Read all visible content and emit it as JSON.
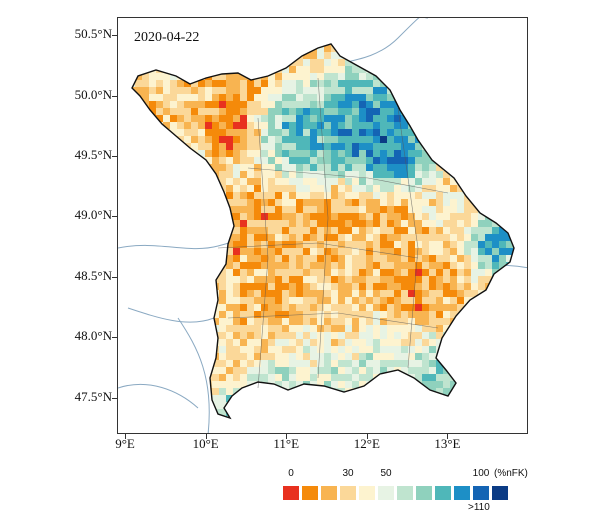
{
  "map": {
    "date": "2020-04-22",
    "lat_labels": [
      "50.5°N",
      "50.0°N",
      "49.5°N",
      "49.0°N",
      "48.5°N",
      "48.0°N",
      "47.5°N"
    ],
    "lat_values": [
      50.5,
      50.0,
      49.5,
      49.0,
      48.5,
      48.0,
      47.5
    ],
    "lon_labels": [
      "9°E",
      "10°E",
      "11°E",
      "12°E",
      "13°E"
    ],
    "lon_values": [
      9,
      10,
      11,
      12,
      13
    ],
    "extent": {
      "lon_min": 8.9,
      "lon_max": 14.0,
      "lat_min": 47.2,
      "lat_max": 50.65
    }
  },
  "legend": {
    "tick_labels": [
      "0",
      "30",
      "50",
      "100"
    ],
    "tick_positions": [
      0,
      3,
      5,
      10
    ],
    "unit": "(%nFK)",
    "over_label": ">110",
    "colors": [
      "#e8311f",
      "#f58a0a",
      "#f8b451",
      "#fbd899",
      "#fdf3cf",
      "#e7f3e4",
      "#bfe4cf",
      "#8fd1bd",
      "#4fb7b9",
      "#1d8fc6",
      "#1464b4",
      "#0b3b85"
    ]
  }
}
